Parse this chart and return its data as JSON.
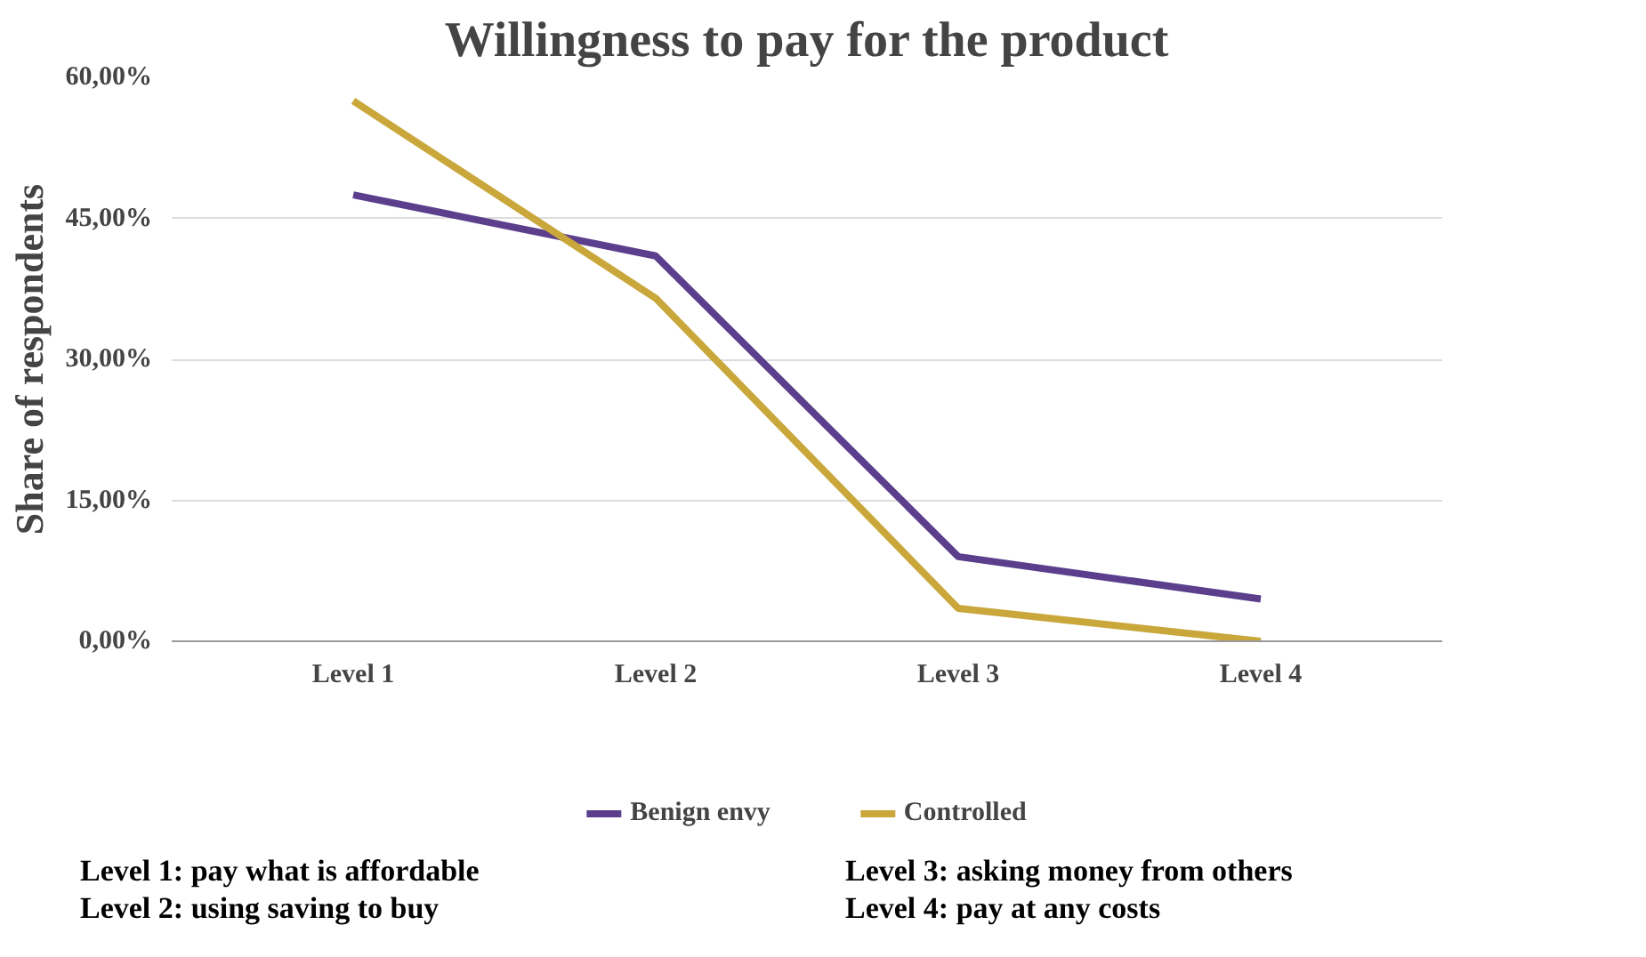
{
  "chart_data": {
    "type": "line",
    "title": "Willingness to pay for the product",
    "ylabel": "Share of respondents",
    "categories": [
      "Level 1",
      "Level 2",
      "Level 3",
      "Level 4"
    ],
    "series": [
      {
        "name": "Benign envy",
        "color": "#5b3f8c",
        "values": [
          47.5,
          41,
          9,
          4.5
        ]
      },
      {
        "name": "Controlled",
        "color": "#c9a73b",
        "values": [
          57.5,
          36.5,
          3.5,
          0
        ]
      }
    ],
    "ylim": [
      0,
      60
    ],
    "yticks": [
      {
        "value": 0,
        "label": "0,00%"
      },
      {
        "value": 15,
        "label": "15,00%"
      },
      {
        "value": 30,
        "label": "30,00%"
      },
      {
        "value": 45,
        "label": "45,00%"
      },
      {
        "value": 60,
        "label": "60,00%"
      }
    ],
    "grid": "y",
    "legend": "bottom",
    "marker": "none",
    "line_style": "solid",
    "annotations": [
      "Level 1: pay what is affordable",
      "Level 2: using saving to buy",
      "Level 3: asking money from others",
      "Level 4: pay at any costs"
    ]
  }
}
